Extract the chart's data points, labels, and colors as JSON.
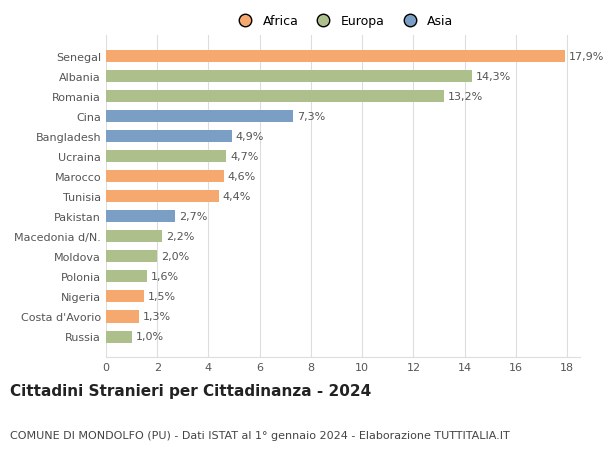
{
  "categories": [
    "Senegal",
    "Albania",
    "Romania",
    "Cina",
    "Bangladesh",
    "Ucraina",
    "Marocco",
    "Tunisia",
    "Pakistan",
    "Macedonia d/N.",
    "Moldova",
    "Polonia",
    "Nigeria",
    "Costa d'Avorio",
    "Russia"
  ],
  "values": [
    17.9,
    14.3,
    13.2,
    7.3,
    4.9,
    4.7,
    4.6,
    4.4,
    2.7,
    2.2,
    2.0,
    1.6,
    1.5,
    1.3,
    1.0
  ],
  "labels": [
    "17,9%",
    "14,3%",
    "13,2%",
    "7,3%",
    "4,9%",
    "4,7%",
    "4,6%",
    "4,4%",
    "2,7%",
    "2,2%",
    "2,0%",
    "1,6%",
    "1,5%",
    "1,3%",
    "1,0%"
  ],
  "continents": [
    "Africa",
    "Europa",
    "Europa",
    "Asia",
    "Asia",
    "Europa",
    "Africa",
    "Africa",
    "Asia",
    "Europa",
    "Europa",
    "Europa",
    "Africa",
    "Africa",
    "Europa"
  ],
  "colors": {
    "Africa": "#F5A96E",
    "Europa": "#ADBF8A",
    "Asia": "#7B9FC4"
  },
  "legend_labels": [
    "Africa",
    "Europa",
    "Asia"
  ],
  "legend_colors": [
    "#F5A96E",
    "#ADBF8A",
    "#7B9FC4"
  ],
  "title": "Cittadini Stranieri per Cittadinanza - 2024",
  "subtitle": "COMUNE DI MONDOLFO (PU) - Dati ISTAT al 1° gennaio 2024 - Elaborazione TUTTITALIA.IT",
  "xlim": [
    0,
    18
  ],
  "xticks": [
    0,
    2,
    4,
    6,
    8,
    10,
    12,
    14,
    16,
    18
  ],
  "background_color": "#ffffff",
  "grid_color": "#dddddd",
  "title_fontsize": 11,
  "subtitle_fontsize": 8,
  "label_fontsize": 8,
  "tick_fontsize": 8,
  "legend_fontsize": 9
}
